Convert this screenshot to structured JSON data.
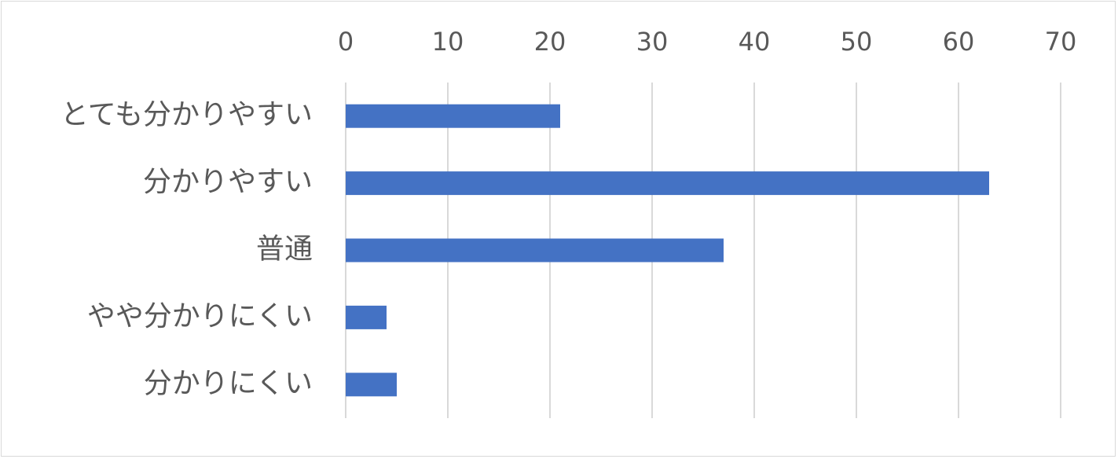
{
  "chart_data": {
    "type": "bar",
    "orientation": "horizontal",
    "categories": [
      "とても分かりやすい",
      "分かりやすい",
      "普通",
      "やや分かりにくい",
      "分かりにくい"
    ],
    "values": [
      21,
      63,
      37,
      4,
      5
    ],
    "title": "",
    "xlabel": "",
    "ylabel": "",
    "xlim": [
      0,
      70
    ],
    "x_ticks": [
      "0",
      "10",
      "20",
      "30",
      "40",
      "50",
      "60",
      "70"
    ],
    "x_axis_position": "top",
    "grid": true,
    "legend": "none",
    "bar_color": "#4472c4",
    "grid_color": "#d9d9d9",
    "text_color": "#595959"
  }
}
